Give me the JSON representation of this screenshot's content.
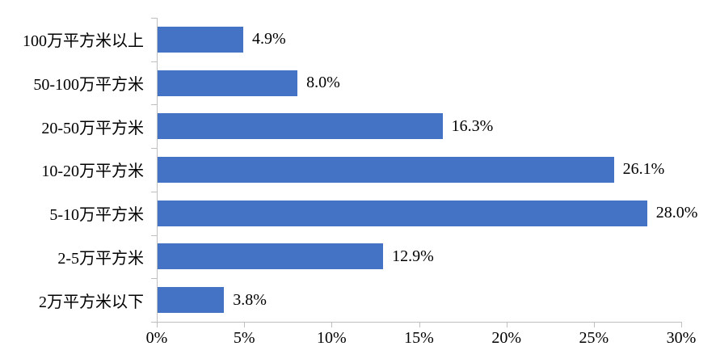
{
  "chart_data": {
    "type": "bar",
    "orientation": "horizontal",
    "title": "",
    "xlabel": "",
    "ylabel": "",
    "categories": [
      "100万平方米以上",
      "50-100万平方米",
      "20-50万平方米",
      "10-20万平方米",
      "5-10万平方米",
      "2-5万平方米",
      "2万平方米以下"
    ],
    "values": [
      4.9,
      8.0,
      16.3,
      26.1,
      28.0,
      12.9,
      3.8
    ],
    "value_labels": [
      "4.9%",
      "8.0%",
      "16.3%",
      "26.1%",
      "28.0%",
      "12.9%",
      "3.8%"
    ],
    "x_ticks": [
      "0%",
      "5%",
      "10%",
      "15%",
      "20%",
      "25%",
      "30%"
    ],
    "x_tick_values": [
      0,
      5,
      10,
      15,
      20,
      25,
      30
    ],
    "xlim": [
      0,
      30
    ],
    "grid": false,
    "legend": "none",
    "colors": {
      "bar": "#4472C4",
      "axis": "#BFBFBF",
      "text": "#000000",
      "background": "#FFFFFF"
    }
  }
}
